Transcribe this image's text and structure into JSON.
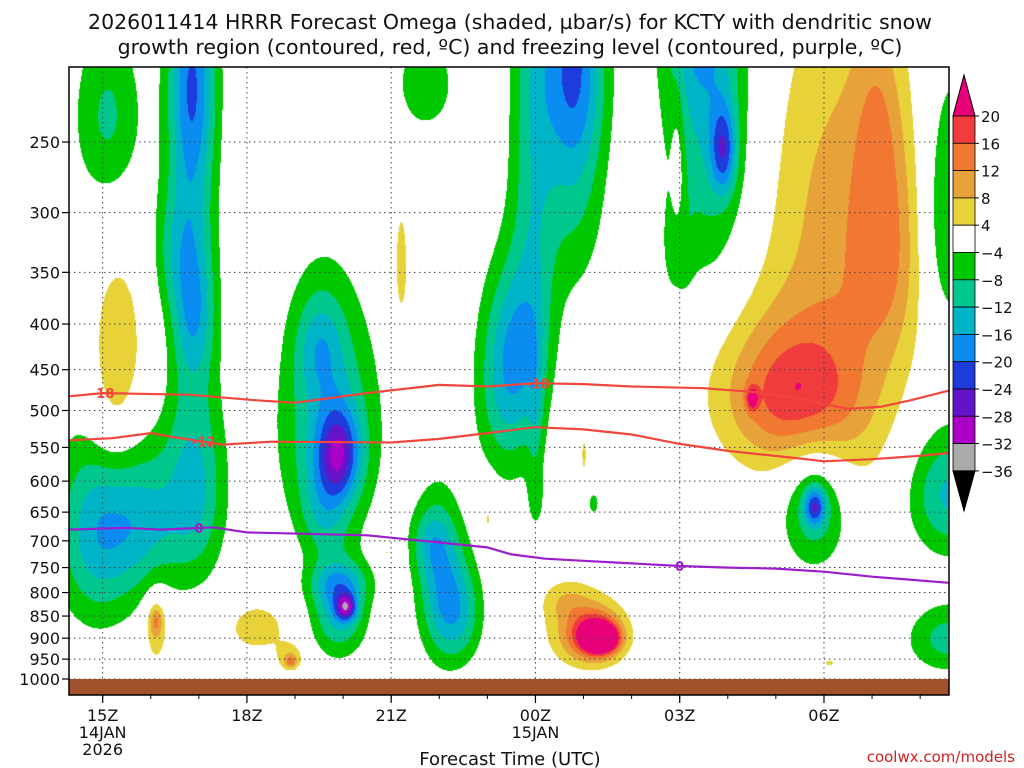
{
  "chart_data": {
    "type": "heatmap",
    "title_line1": "2026011414 HRRR Forecast Omega (shaded, µbar/s) for KCTY with dendritic snow",
    "title_line2": "growth region (contoured, red, ºC) and freezing level (contoured, purple, ºC)",
    "xlabel": "Forecast Time (UTC)",
    "watermark": "coolwx.com/models",
    "x_range_hours": [
      14.3,
      32.6
    ],
    "y_range_mb": [
      200,
      1000
    ],
    "x_ticks": [
      {
        "hour": 15,
        "label": "15Z",
        "sub1": "14JAN",
        "sub2": "2026"
      },
      {
        "hour": 18,
        "label": "18Z",
        "sub1": "",
        "sub2": ""
      },
      {
        "hour": 21,
        "label": "21Z",
        "sub1": "",
        "sub2": ""
      },
      {
        "hour": 24,
        "label": "00Z",
        "sub1": "15JAN",
        "sub2": ""
      },
      {
        "hour": 27,
        "label": "03Z",
        "sub1": "",
        "sub2": ""
      },
      {
        "hour": 30,
        "label": "06Z",
        "sub1": "",
        "sub2": ""
      }
    ],
    "y_ticks": [
      "250",
      "300",
      "350",
      "400",
      "450",
      "500",
      "550",
      "600",
      "650",
      "700",
      "750",
      "800",
      "850",
      "900",
      "950",
      "1000"
    ],
    "colorbar": {
      "labels": [
        "20",
        "16",
        "12",
        "8",
        "4",
        "−4",
        "−8",
        "−12",
        "−16",
        "−20",
        "−24",
        "−28",
        "−32",
        "−36"
      ],
      "bins": [
        {
          "lo": 20,
          "hi": 99,
          "color": "#e8007a"
        },
        {
          "lo": 16,
          "hi": 20,
          "color": "#f03c3c"
        },
        {
          "lo": 12,
          "hi": 16,
          "color": "#f07832"
        },
        {
          "lo": 8,
          "hi": 12,
          "color": "#e8a23a"
        },
        {
          "lo": 4,
          "hi": 8,
          "color": "#e8d23a"
        },
        {
          "lo": -4,
          "hi": 4,
          "color": "#ffffff"
        },
        {
          "lo": -8,
          "hi": -4,
          "color": "#00c800"
        },
        {
          "lo": -12,
          "hi": -8,
          "color": "#00c88c"
        },
        {
          "lo": -16,
          "hi": -12,
          "color": "#00b4c8"
        },
        {
          "lo": -20,
          "hi": -16,
          "color": "#0a8cf0"
        },
        {
          "lo": -24,
          "hi": -20,
          "color": "#1e3cdc"
        },
        {
          "lo": -28,
          "hi": -24,
          "color": "#6414c8"
        },
        {
          "lo": -32,
          "hi": -28,
          "color": "#aa00c8"
        },
        {
          "lo": -36,
          "hi": -32,
          "color": "#aaaaaa"
        },
        {
          "lo": -99,
          "hi": -36,
          "color": "#000000"
        }
      ]
    },
    "omega_features": [
      {
        "h": 14.9,
        "p": 680,
        "sh": 0.6,
        "sp": 120,
        "amp": -15
      },
      {
        "h": 15.9,
        "p": 665,
        "sh": 0.5,
        "sp": 90,
        "amp": -10
      },
      {
        "h": 16.9,
        "p": 610,
        "sh": 0.45,
        "sp": 110,
        "amp": -13
      },
      {
        "h": 15.1,
        "p": 235,
        "sh": 0.5,
        "sp": 40,
        "amp": -9
      },
      {
        "h": 16.85,
        "p": 210,
        "sh": 0.35,
        "sp": 40,
        "amp": -12
      },
      {
        "h": 16.85,
        "p": 300,
        "sh": 0.35,
        "sp": 110,
        "amp": -12
      },
      {
        "h": 16.9,
        "p": 390,
        "sh": 0.3,
        "sp": 45,
        "amp": -7
      },
      {
        "h": 16.4,
        "p": 330,
        "sh": 0.3,
        "sp": 40,
        "amp": -6
      },
      {
        "h": 19.7,
        "p": 520,
        "sh": 0.7,
        "sp": 110,
        "amp": -13
      },
      {
        "h": 19.9,
        "p": 560,
        "sh": 0.3,
        "sp": 45,
        "amp": -17
      },
      {
        "h": 19.5,
        "p": 420,
        "sh": 0.35,
        "sp": 40,
        "amp": -8
      },
      {
        "h": 19.9,
        "p": 835,
        "sh": 0.4,
        "sp": 70,
        "amp": -14
      },
      {
        "h": 20.05,
        "p": 830,
        "sh": 0.15,
        "sp": 20,
        "amp": -18
      },
      {
        "h": 19.9,
        "p": 780,
        "sh": 0.45,
        "sp": 30,
        "amp": -8
      },
      {
        "h": 22.0,
        "p": 775,
        "sh": 0.35,
        "sp": 110,
        "amp": -12
      },
      {
        "h": 22.4,
        "p": 840,
        "sh": 0.35,
        "sp": 80,
        "amp": -11
      },
      {
        "h": 21.8,
        "p": 700,
        "sh": 0.3,
        "sp": 45,
        "amp": -7
      },
      {
        "h": 19.6,
        "p": 650,
        "sh": 0.35,
        "sp": 55,
        "amp": -7
      },
      {
        "h": 23.4,
        "p": 480,
        "sh": 0.45,
        "sp": 80,
        "amp": -11
      },
      {
        "h": 23.6,
        "p": 410,
        "sh": 0.45,
        "sp": 60,
        "amp": -8
      },
      {
        "h": 23.95,
        "p": 240,
        "sh": 0.35,
        "sp": 150,
        "amp": -10
      },
      {
        "h": 24.8,
        "p": 240,
        "sh": 0.45,
        "sp": 80,
        "amp": -11
      },
      {
        "h": 24.8,
        "p": 200,
        "sh": 0.45,
        "sp": 40,
        "amp": -11
      },
      {
        "h": 24.0,
        "p": 630,
        "sh": 0.12,
        "sp": 35,
        "amp": -5
      },
      {
        "h": 24.0,
        "p": 500,
        "sh": 0.12,
        "sp": 70,
        "amp": -5
      },
      {
        "h": 21.7,
        "p": 215,
        "sh": 0.45,
        "sp": 20,
        "amp": -7
      },
      {
        "h": 27.6,
        "p": 225,
        "sh": 0.6,
        "sp": 90,
        "amp": -12
      },
      {
        "h": 27.9,
        "p": 255,
        "sh": 0.18,
        "sp": 20,
        "amp": -15
      },
      {
        "h": 27.3,
        "p": 170,
        "sh": 0.5,
        "sp": 40,
        "amp": -9
      },
      {
        "h": 26.95,
        "p": 330,
        "sh": 0.2,
        "sp": 30,
        "amp": -6
      },
      {
        "h": 29.8,
        "p": 640,
        "sh": 0.5,
        "sp": 75,
        "amp": -12
      },
      {
        "h": 29.8,
        "p": 640,
        "sh": 0.15,
        "sp": 22,
        "amp": -16
      },
      {
        "h": 32.6,
        "p": 620,
        "sh": 0.6,
        "sp": 70,
        "amp": -13
      },
      {
        "h": 32.6,
        "p": 900,
        "sh": 0.6,
        "sp": 55,
        "amp": -10
      },
      {
        "h": 32.6,
        "p": 300,
        "sh": 0.4,
        "sp": 70,
        "amp": -9
      },
      {
        "h": 25.2,
        "p": 635,
        "sh": 0.12,
        "sp": 20,
        "amp": -5
      },
      {
        "h": 15.3,
        "p": 420,
        "sh": 0.5,
        "sp": 80,
        "amp": 6
      },
      {
        "h": 15.2,
        "p": 520,
        "sh": 0.4,
        "sp": 60,
        "amp": 5
      },
      {
        "h": 16.1,
        "p": 880,
        "sh": 0.2,
        "sp": 70,
        "amp": 6
      },
      {
        "h": 16.1,
        "p": 860,
        "sh": 0.1,
        "sp": 25,
        "amp": 9
      },
      {
        "h": 18.2,
        "p": 875,
        "sh": 0.5,
        "sp": 45,
        "amp": 6
      },
      {
        "h": 18.9,
        "p": 945,
        "sh": 0.2,
        "sp": 25,
        "amp": 7
      },
      {
        "h": 18.9,
        "p": 955,
        "sh": 0.08,
        "sp": 10,
        "amp": 9
      },
      {
        "h": 20.9,
        "p": 720,
        "sh": 0.18,
        "sp": 10,
        "amp": 5
      },
      {
        "h": 21.2,
        "p": 345,
        "sh": 0.12,
        "sp": 45,
        "amp": 6
      },
      {
        "h": 23.0,
        "p": 660,
        "sh": 0.12,
        "sp": 35,
        "amp": 5
      },
      {
        "h": 25.0,
        "p": 880,
        "sh": 0.55,
        "sp": 60,
        "amp": 9
      },
      {
        "h": 25.25,
        "p": 893,
        "sh": 0.4,
        "sp": 40,
        "amp": 14
      },
      {
        "h": 25.3,
        "p": 898,
        "sh": 0.25,
        "sp": 25,
        "amp": 18
      },
      {
        "h": 25.4,
        "p": 900,
        "sh": 0.18,
        "sp": 17,
        "amp": 23
      },
      {
        "h": 24.6,
        "p": 815,
        "sh": 0.35,
        "sp": 30,
        "amp": 5
      },
      {
        "h": 26.95,
        "p": 275,
        "sh": 0.1,
        "sp": 45,
        "amp": 5
      },
      {
        "h": 25.0,
        "p": 560,
        "sh": 0.05,
        "sp": 25,
        "amp": 5
      },
      {
        "h": 29.3,
        "p": 470,
        "sh": 1.2,
        "sp": 85,
        "amp": 7
      },
      {
        "h": 29.3,
        "p": 480,
        "sh": 0.9,
        "sp": 55,
        "amp": 10
      },
      {
        "h": 30.3,
        "p": 420,
        "sh": 1.0,
        "sp": 160,
        "amp": 6
      },
      {
        "h": 31.3,
        "p": 330,
        "sh": 0.5,
        "sp": 70,
        "amp": 9
      },
      {
        "h": 30.3,
        "p": 265,
        "sh": 1.0,
        "sp": 80,
        "amp": 5
      },
      {
        "h": 31.1,
        "p": 230,
        "sh": 0.35,
        "sp": 45,
        "amp": 5
      },
      {
        "h": 28.5,
        "p": 484,
        "sh": 0.08,
        "sp": 10,
        "amp": 14
      },
      {
        "h": 30.1,
        "p": 958,
        "sh": 0.08,
        "sp": 6,
        "amp": 6
      }
    ],
    "contours": [
      {
        "label": "-18",
        "color": "#f0463c",
        "label_hour": 15.0,
        "label_color": "#f0463c",
        "points": [
          [
            14.3,
            482
          ],
          [
            15.0,
            478
          ],
          [
            16.8,
            480
          ],
          [
            18.2,
            487
          ],
          [
            19.0,
            490
          ],
          [
            20.5,
            478
          ],
          [
            22.0,
            468
          ],
          [
            23.0,
            470
          ],
          [
            24.0,
            466
          ],
          [
            25.0,
            467
          ],
          [
            26.0,
            470
          ],
          [
            27.5,
            472
          ],
          [
            28.6,
            477
          ],
          [
            29.5,
            485
          ],
          [
            30.5,
            498
          ],
          [
            31.2,
            495
          ],
          [
            31.8,
            487
          ],
          [
            32.6,
            475
          ]
        ]
      },
      {
        "label": "-12",
        "color": "#f0463c",
        "label_hour": 17.1,
        "label_color": "#f0463c",
        "points": [
          [
            14.3,
            540
          ],
          [
            15.2,
            537
          ],
          [
            16.0,
            530
          ],
          [
            16.5,
            536
          ],
          [
            17.5,
            546
          ],
          [
            18.5,
            542
          ],
          [
            21.0,
            543
          ],
          [
            22.0,
            538
          ],
          [
            23.0,
            530
          ],
          [
            24.0,
            522
          ],
          [
            25.0,
            525
          ],
          [
            26.0,
            532
          ],
          [
            27.0,
            545
          ],
          [
            28.0,
            555
          ],
          [
            29.5,
            566
          ],
          [
            30.0,
            570
          ],
          [
            31.0,
            567
          ],
          [
            32.0,
            562
          ],
          [
            32.6,
            558
          ]
        ]
      },
      {
        "label": "0",
        "color": "#9b1ecc",
        "label_hour": 17.0,
        "label_color": "#9b1ecc",
        "points": [
          [
            14.3,
            680
          ],
          [
            15.5,
            677
          ],
          [
            16.2,
            680
          ],
          [
            17.3,
            676
          ],
          [
            18.0,
            685
          ],
          [
            20.5,
            690
          ],
          [
            22.0,
            703
          ],
          [
            23.0,
            712
          ],
          [
            23.5,
            725
          ],
          [
            24.2,
            733
          ],
          [
            25.0,
            737
          ],
          [
            26.0,
            742
          ],
          [
            27.0,
            747
          ],
          [
            28.0,
            750
          ],
          [
            29.0,
            752
          ],
          [
            30.0,
            758
          ],
          [
            31.0,
            768
          ],
          [
            32.6,
            780
          ]
        ]
      }
    ]
  }
}
